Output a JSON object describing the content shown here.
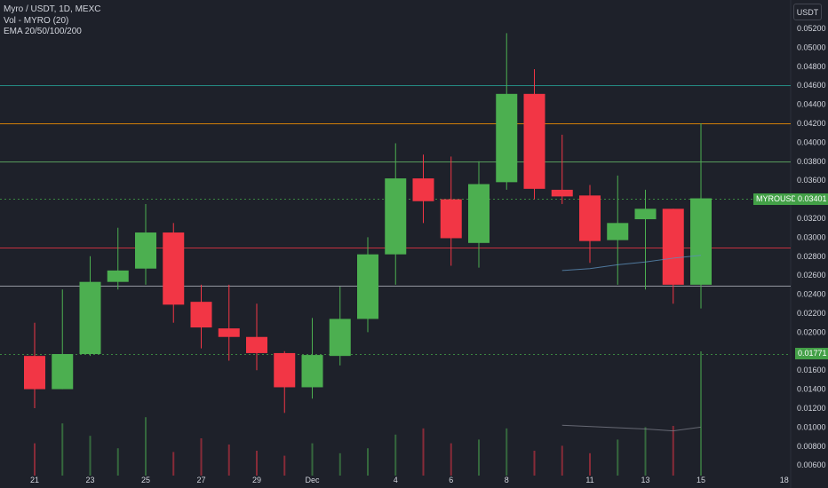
{
  "header": {
    "title": "Myro / USDT, 1D, MEXC",
    "volume_label": "Vol - MYRO (20)",
    "ema_label": "EMA 20/50/100/200"
  },
  "currency_button": "USDT",
  "price_tags": {
    "symbol": "MYROUSDT",
    "last_price": "0.03401",
    "reference_price": "0.01771"
  },
  "colors": {
    "background": "#1e212a",
    "up": "#4caf50",
    "down": "#f23645",
    "grid_text": "#d1d4dc"
  },
  "chart_data": {
    "type": "candlestick",
    "title": "Myro / USDT, 1D, MEXC",
    "x_tick_labels": [
      "21",
      "23",
      "25",
      "27",
      "29",
      "Dec",
      "4",
      "6",
      "8",
      "11",
      "13",
      "15",
      "18"
    ],
    "y_tick_labels": [
      "0.05200",
      "0.05000",
      "0.04800",
      "0.04600",
      "0.04400",
      "0.04200",
      "0.04000",
      "0.03800",
      "0.03600",
      "0.03400",
      "0.03200",
      "0.03000",
      "0.02800",
      "0.02600",
      "0.02400",
      "0.02200",
      "0.02000",
      "0.01800",
      "0.01600",
      "0.01400",
      "0.01200",
      "0.01000",
      "0.00800",
      "0.00600"
    ],
    "ylim": [
      0.0055,
      0.0535
    ],
    "grid": false,
    "candles": [
      {
        "date": "Nov 21",
        "open": 0.0175,
        "high": 0.021,
        "low": 0.012,
        "close": 0.014
      },
      {
        "date": "Nov 22",
        "open": 0.014,
        "high": 0.0245,
        "low": 0.014,
        "close": 0.0177
      },
      {
        "date": "Nov 23",
        "open": 0.0177,
        "high": 0.028,
        "low": 0.0175,
        "close": 0.0253
      },
      {
        "date": "Nov 24",
        "open": 0.0253,
        "high": 0.031,
        "low": 0.0245,
        "close": 0.0265
      },
      {
        "date": "Nov 25",
        "open": 0.0267,
        "high": 0.0335,
        "low": 0.025,
        "close": 0.0305
      },
      {
        "date": "Nov 26",
        "open": 0.0305,
        "high": 0.0315,
        "low": 0.021,
        "close": 0.0229
      },
      {
        "date": "Nov 27",
        "open": 0.0232,
        "high": 0.025,
        "low": 0.0183,
        "close": 0.0205
      },
      {
        "date": "Nov 28",
        "open": 0.0204,
        "high": 0.025,
        "low": 0.017,
        "close": 0.0195
      },
      {
        "date": "Nov 29",
        "open": 0.0195,
        "high": 0.023,
        "low": 0.016,
        "close": 0.0178
      },
      {
        "date": "Nov 30",
        "open": 0.0178,
        "high": 0.018,
        "low": 0.0115,
        "close": 0.0142
      },
      {
        "date": "Dec 1",
        "open": 0.0142,
        "high": 0.0215,
        "low": 0.013,
        "close": 0.0176
      },
      {
        "date": "Dec 2",
        "open": 0.0175,
        "high": 0.0248,
        "low": 0.0165,
        "close": 0.0214
      },
      {
        "date": "Dec 3",
        "open": 0.0214,
        "high": 0.03,
        "low": 0.02,
        "close": 0.0282
      },
      {
        "date": "Dec 4",
        "open": 0.0282,
        "high": 0.0399,
        "low": 0.025,
        "close": 0.0362
      },
      {
        "date": "Dec 5",
        "open": 0.0362,
        "high": 0.0387,
        "low": 0.0315,
        "close": 0.0338
      },
      {
        "date": "Dec 6",
        "open": 0.034,
        "high": 0.0385,
        "low": 0.027,
        "close": 0.0299
      },
      {
        "date": "Dec 7",
        "open": 0.0294,
        "high": 0.038,
        "low": 0.0268,
        "close": 0.0356
      },
      {
        "date": "Dec 8",
        "open": 0.0358,
        "high": 0.0515,
        "low": 0.035,
        "close": 0.0451
      },
      {
        "date": "Dec 9",
        "open": 0.0451,
        "high": 0.0477,
        "low": 0.034,
        "close": 0.0351
      },
      {
        "date": "Dec 10",
        "open": 0.035,
        "high": 0.0408,
        "low": 0.0335,
        "close": 0.0343
      },
      {
        "date": "Dec 11",
        "open": 0.0344,
        "high": 0.0355,
        "low": 0.0273,
        "close": 0.0296
      },
      {
        "date": "Dec 12",
        "open": 0.0297,
        "high": 0.0365,
        "low": 0.025,
        "close": 0.0315
      },
      {
        "date": "Dec 13",
        "open": 0.0319,
        "high": 0.035,
        "low": 0.0245,
        "close": 0.033
      },
      {
        "date": "Dec 14",
        "open": 0.033,
        "high": 0.033,
        "low": 0.023,
        "close": 0.025
      },
      {
        "date": "Dec 15",
        "open": 0.025,
        "high": 0.042,
        "low": 0.0225,
        "close": 0.0341
      }
    ],
    "volume_relative": [
      0.26,
      0.42,
      0.32,
      0.22,
      0.47,
      0.19,
      0.3,
      0.25,
      0.2,
      0.16,
      0.26,
      0.18,
      0.22,
      0.33,
      0.38,
      0.26,
      0.29,
      0.38,
      0.2,
      0.24,
      0.18,
      0.29,
      0.39,
      0.4,
      1.0
    ],
    "horizontal_levels": [
      {
        "price": 0.046,
        "color": "#26a69a"
      },
      {
        "price": 0.042,
        "color": "#ff9800"
      },
      {
        "price": 0.038,
        "color": "#66bb6a"
      },
      {
        "price": 0.0341,
        "color": "#43a047",
        "style": "dotted"
      },
      {
        "price": 0.0289,
        "color": "#f23645"
      },
      {
        "price": 0.0249,
        "color": "#b2b5be"
      },
      {
        "price": 0.0177,
        "color": "#43a047",
        "style": "dotted"
      }
    ],
    "ema_line": [
      {
        "date": "Dec 10",
        "value": 0.0265
      },
      {
        "date": "Dec 11",
        "value": 0.0267
      },
      {
        "date": "Dec 12",
        "value": 0.0271
      },
      {
        "date": "Dec 13",
        "value": 0.0274
      },
      {
        "date": "Dec 14",
        "value": 0.0278
      },
      {
        "date": "Dec 15",
        "value": 0.0281
      }
    ],
    "volume_ma_relative": [
      {
        "date": "Dec 10",
        "value": 0.27
      },
      {
        "date": "Dec 13",
        "value": 0.25
      },
      {
        "date": "Dec 14",
        "value": 0.24
      },
      {
        "date": "Dec 15",
        "value": 0.26
      }
    ]
  }
}
